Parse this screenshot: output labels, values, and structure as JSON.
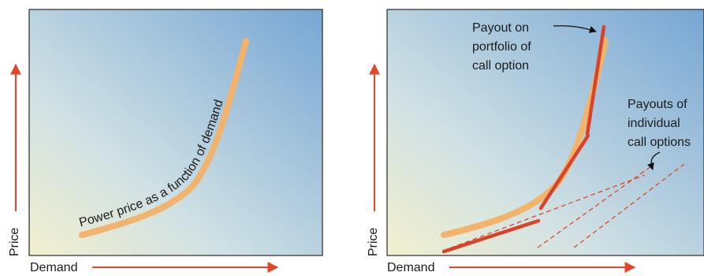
{
  "colors": {
    "curve": "#f2b46c",
    "accent": "#e0482b",
    "frame": "#2a2a2a",
    "bg_light": "#f2efcf",
    "bg_blue": "#7aa7d3"
  },
  "left_panel": {
    "curve_label": "Power price as a function of demand",
    "y_axis_label": "Price",
    "x_axis_label": "Demand"
  },
  "right_panel": {
    "portfolio_label": [
      "Payout on",
      "portfolio of",
      "call option"
    ],
    "individual_label": [
      "Payouts of",
      "individual",
      "call options"
    ],
    "y_axis_label": "Price",
    "x_axis_label": "Demand"
  }
}
